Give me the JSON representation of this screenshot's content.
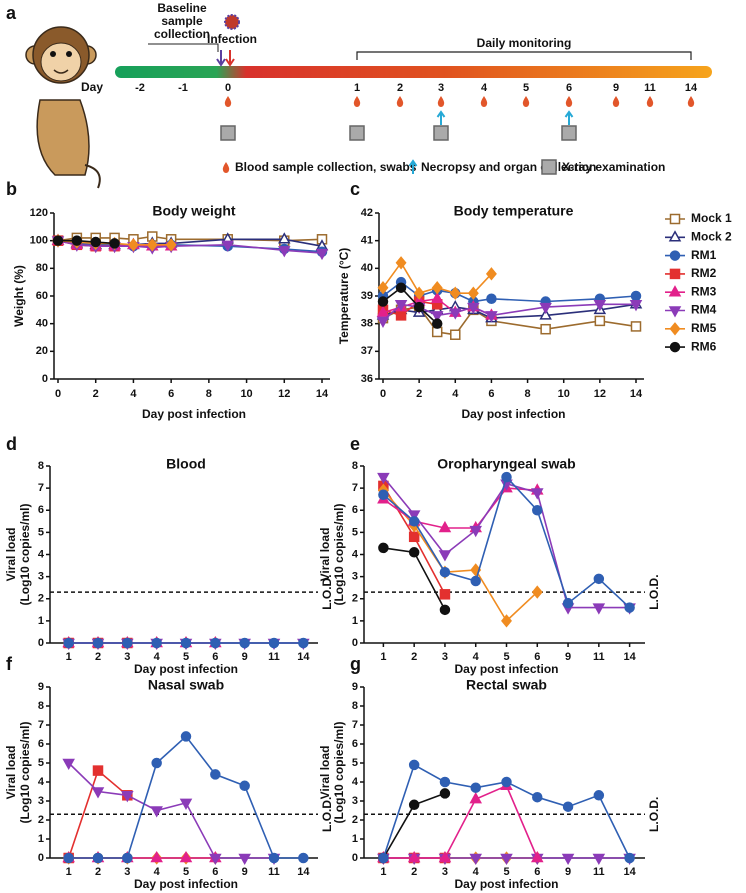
{
  "timeline": {
    "panel": "a",
    "baseline": [
      "Baseline",
      "sample",
      "collection"
    ],
    "infection": "Infection",
    "monitoring": "Daily monitoring",
    "day_label": "Day",
    "days": [
      "-2",
      "-1",
      "0",
      "1",
      "2",
      "3",
      "4",
      "5",
      "6",
      "9",
      "11",
      "14"
    ],
    "blood": [
      "0",
      "1",
      "2",
      "3",
      "4",
      "5",
      "6",
      "9",
      "11",
      "14"
    ],
    "necropsy": [
      "3",
      "6"
    ],
    "xray": [
      "0",
      "1",
      "3",
      "6"
    ],
    "legend": [
      "Blood sample collection, swabs",
      "Necropsy and organ collection",
      "X-ray examination"
    ]
  },
  "chart_data": [
    {
      "type": "line",
      "panel": "b",
      "title": "Body weight",
      "xlabel": "Day post infection",
      "ylabel": "Weight (%)",
      "x": [
        0,
        1,
        2,
        3,
        4,
        5,
        6,
        9,
        12,
        14
      ],
      "xlim": [
        0,
        14
      ],
      "xticks": [
        0,
        2,
        4,
        6,
        8,
        10,
        12,
        14
      ],
      "ylim": [
        0,
        120
      ],
      "yticks": [
        0,
        20,
        40,
        60,
        80,
        100,
        120
      ],
      "series": [
        {
          "color": "#9c6b2e",
          "marker": "square-open",
          "values": [
            100,
            102,
            102,
            102,
            101,
            103,
            101,
            101,
            100,
            101
          ]
        },
        {
          "color": "#2b2f7a",
          "marker": "triangle-open",
          "values": [
            100,
            98,
            97,
            97,
            97,
            98,
            98,
            101,
            101,
            96
          ]
        },
        {
          "color": "#2f5fb3",
          "marker": "circle",
          "values": [
            100,
            98,
            97,
            97,
            96,
            96,
            97,
            96,
            94,
            92
          ]
        },
        {
          "color": "#e3302f",
          "marker": "square",
          "values": [
            100,
            97,
            96,
            96,
            null,
            null,
            null,
            null,
            null,
            null
          ]
        },
        {
          "color": "#e2218b",
          "marker": "triangle",
          "values": [
            100,
            97,
            96,
            96,
            97,
            96,
            96,
            null,
            null,
            null
          ]
        },
        {
          "color": "#8b3bb8",
          "marker": "triangle-down",
          "values": [
            100,
            97,
            96,
            96,
            96,
            95,
            96,
            97,
            93,
            91
          ]
        },
        {
          "color": "#f08c21",
          "marker": "diamond",
          "values": [
            100,
            99,
            98,
            98,
            97,
            97,
            97,
            null,
            null,
            null
          ]
        },
        {
          "color": "#111111",
          "marker": "circle",
          "values": [
            100,
            100,
            99,
            98,
            null,
            null,
            null,
            null,
            null,
            null
          ]
        }
      ]
    },
    {
      "type": "line",
      "panel": "c",
      "title": "Body temperature",
      "xlabel": "Day post infection",
      "ylabel": "Temperature (°C)",
      "x": [
        0,
        1,
        2,
        3,
        4,
        5,
        6,
        9,
        12,
        14
      ],
      "xlim": [
        0,
        14
      ],
      "xticks": [
        0,
        2,
        4,
        6,
        8,
        10,
        12,
        14
      ],
      "ylim": [
        36,
        42
      ],
      "yticks": [
        36,
        37,
        38,
        39,
        40,
        41,
        42
      ],
      "legend": "right",
      "series": [
        {
          "name": "Mock 1",
          "color": "#9c6b2e",
          "marker": "square-open",
          "values": [
            38.2,
            38.5,
            38.6,
            37.7,
            37.6,
            38.5,
            38.1,
            37.8,
            38.1,
            37.9
          ]
        },
        {
          "name": "Mock 2",
          "color": "#2b2f7a",
          "marker": "triangle-open",
          "values": [
            38.3,
            38.5,
            38.4,
            38.5,
            38.6,
            38.5,
            38.2,
            38.3,
            38.5,
            38.7
          ]
        },
        {
          "name": "RM1",
          "color": "#2f5fb3",
          "marker": "circle",
          "values": [
            39.0,
            39.5,
            39.0,
            39.2,
            39.1,
            38.8,
            38.9,
            38.8,
            38.9,
            39.0
          ]
        },
        {
          "name": "RM2",
          "color": "#e3302f",
          "marker": "square",
          "values": [
            38.5,
            38.3,
            38.8,
            38.7,
            null,
            null,
            null,
            null,
            null,
            null
          ]
        },
        {
          "name": "RM3",
          "color": "#e2218b",
          "marker": "triangle",
          "values": [
            38.4,
            38.6,
            38.8,
            38.9,
            38.4,
            38.6,
            38.3,
            null,
            null,
            null
          ]
        },
        {
          "name": "RM4",
          "color": "#8b3bb8",
          "marker": "triangle-down",
          "values": [
            38.1,
            38.7,
            38.6,
            38.3,
            38.4,
            38.6,
            38.3,
            38.6,
            38.7,
            38.7
          ]
        },
        {
          "name": "RM5",
          "color": "#f08c21",
          "marker": "diamond",
          "values": [
            39.3,
            40.2,
            39.1,
            39.3,
            39.1,
            39.1,
            39.8,
            null,
            null,
            null
          ]
        },
        {
          "name": "RM6",
          "color": "#111111",
          "marker": "circle",
          "values": [
            38.8,
            39.3,
            38.6,
            38.0,
            null,
            null,
            null,
            null,
            null,
            null
          ]
        }
      ]
    },
    {
      "type": "line",
      "panel": "d",
      "title": "Blood",
      "xlabel": "Day post infection",
      "ylabel": [
        "Viral load",
        "(Log10 copies/ml)"
      ],
      "categories": [
        "1",
        "2",
        "3",
        "4",
        "5",
        "6",
        "9",
        "11",
        "14"
      ],
      "ylim": [
        0,
        8
      ],
      "yticks": [
        0,
        1,
        2,
        3,
        4,
        5,
        6,
        7,
        8
      ],
      "lod": 2.3,
      "lod_label": "L.O.D.",
      "series": [
        {
          "color": "#111111",
          "marker": "circle",
          "values": [
            0,
            0,
            0,
            null,
            null,
            null,
            null,
            null,
            null
          ]
        },
        {
          "color": "#e3302f",
          "marker": "square",
          "values": [
            0,
            0,
            0,
            null,
            null,
            null,
            null,
            null,
            null
          ]
        },
        {
          "color": "#f08c21",
          "marker": "diamond",
          "values": [
            0,
            0,
            0,
            0,
            0,
            0,
            null,
            null,
            null
          ]
        },
        {
          "color": "#e2218b",
          "marker": "triangle",
          "values": [
            0,
            0,
            0,
            0,
            0,
            0,
            null,
            null,
            null
          ]
        },
        {
          "color": "#8b3bb8",
          "marker": "triangle-down",
          "values": [
            0,
            0,
            0,
            0,
            0,
            0,
            0,
            0,
            0
          ]
        },
        {
          "color": "#2f5fb3",
          "marker": "circle",
          "values": [
            0,
            0,
            0,
            0,
            0,
            0,
            0,
            0,
            0
          ]
        }
      ]
    },
    {
      "type": "line",
      "panel": "e",
      "title": "Oropharyngeal swab",
      "xlabel": "Day post infection",
      "ylabel": [
        "Viral load",
        "(Log10 copies/ml)"
      ],
      "categories": [
        "1",
        "2",
        "3",
        "4",
        "5",
        "6",
        "9",
        "11",
        "14"
      ],
      "ylim": [
        0,
        8
      ],
      "yticks": [
        0,
        1,
        2,
        3,
        4,
        5,
        6,
        7,
        8
      ],
      "lod": 2.3,
      "lod_label": "L.O.D.",
      "series": [
        {
          "color": "#111111",
          "marker": "circle",
          "values": [
            4.3,
            4.1,
            1.5,
            null,
            null,
            null,
            null,
            null,
            null
          ]
        },
        {
          "color": "#e3302f",
          "marker": "square",
          "values": [
            7.1,
            4.8,
            2.2,
            null,
            null,
            null,
            null,
            null,
            null
          ]
        },
        {
          "color": "#f08c21",
          "marker": "diamond",
          "values": [
            6.9,
            5.3,
            3.2,
            3.3,
            1.0,
            2.3,
            null,
            null,
            null
          ]
        },
        {
          "color": "#e2218b",
          "marker": "triangle",
          "values": [
            6.5,
            5.5,
            5.2,
            5.2,
            7.0,
            6.9,
            null,
            null,
            null
          ]
        },
        {
          "color": "#8b3bb8",
          "marker": "triangle-down",
          "values": [
            7.5,
            5.8,
            4.0,
            5.1,
            7.2,
            6.8,
            1.6,
            1.6,
            1.6
          ]
        },
        {
          "color": "#2f5fb3",
          "marker": "circle",
          "values": [
            6.7,
            5.5,
            3.2,
            2.8,
            7.5,
            6.0,
            1.8,
            2.9,
            1.6
          ]
        }
      ]
    },
    {
      "type": "line",
      "panel": "f",
      "title": "Nasal swab",
      "xlabel": "Day post infection",
      "ylabel": [
        "Viral load",
        "(Log10 copies/ml)"
      ],
      "categories": [
        "1",
        "2",
        "3",
        "4",
        "5",
        "6",
        "9",
        "11",
        "14"
      ],
      "ylim": [
        0,
        9
      ],
      "yticks": [
        0,
        1,
        2,
        3,
        4,
        5,
        6,
        7,
        8,
        9
      ],
      "lod": 2.3,
      "lod_label": "L.O.D.",
      "series": [
        {
          "color": "#111111",
          "marker": "circle",
          "values": [
            0,
            0,
            0,
            null,
            null,
            null,
            null,
            null,
            null
          ]
        },
        {
          "color": "#e3302f",
          "marker": "square",
          "values": [
            0,
            4.6,
            3.3,
            null,
            null,
            null,
            null,
            null,
            null
          ]
        },
        {
          "color": "#f08c21",
          "marker": "diamond",
          "values": [
            0,
            0,
            0,
            0,
            0,
            0,
            null,
            null,
            null
          ]
        },
        {
          "color": "#e2218b",
          "marker": "triangle",
          "values": [
            0,
            0,
            0,
            0,
            0,
            0,
            null,
            null,
            null
          ]
        },
        {
          "color": "#8b3bb8",
          "marker": "triangle-down",
          "values": [
            5.0,
            3.5,
            3.3,
            2.5,
            2.9,
            0,
            0,
            0,
            null
          ]
        },
        {
          "color": "#2f5fb3",
          "marker": "circle",
          "values": [
            0,
            0,
            0,
            5.0,
            6.4,
            4.4,
            3.8,
            0,
            0
          ]
        }
      ]
    },
    {
      "type": "line",
      "panel": "g",
      "title": "Rectal swab",
      "xlabel": "Day post infection",
      "ylabel": [
        "Viral load",
        "(Log10 copies/ml)"
      ],
      "categories": [
        "1",
        "2",
        "3",
        "4",
        "5",
        "6",
        "9",
        "11",
        "14"
      ],
      "ylim": [
        0,
        9
      ],
      "yticks": [
        0,
        1,
        2,
        3,
        4,
        5,
        6,
        7,
        8,
        9
      ],
      "lod": 2.3,
      "lod_label": "L.O.D.",
      "series": [
        {
          "color": "#e3302f",
          "marker": "square",
          "values": [
            0,
            0,
            0,
            null,
            null,
            null,
            null,
            null,
            null
          ]
        },
        {
          "color": "#f08c21",
          "marker": "diamond",
          "values": [
            0,
            0,
            0,
            0,
            0,
            0,
            null,
            null,
            null
          ]
        },
        {
          "color": "#8b3bb8",
          "marker": "triangle-down",
          "values": [
            0,
            0,
            0,
            0,
            0,
            0,
            0,
            0,
            0
          ]
        },
        {
          "color": "#e2218b",
          "marker": "triangle",
          "values": [
            0,
            0,
            0,
            3.1,
            3.8,
            0,
            null,
            null,
            null
          ]
        },
        {
          "color": "#111111",
          "marker": "circle",
          "values": [
            0,
            2.8,
            3.4,
            null,
            null,
            null,
            null,
            null,
            null
          ]
        },
        {
          "color": "#2f5fb3",
          "marker": "circle",
          "values": [
            0,
            4.9,
            4.0,
            3.7,
            4.0,
            3.2,
            2.7,
            3.3,
            0
          ]
        }
      ]
    }
  ]
}
